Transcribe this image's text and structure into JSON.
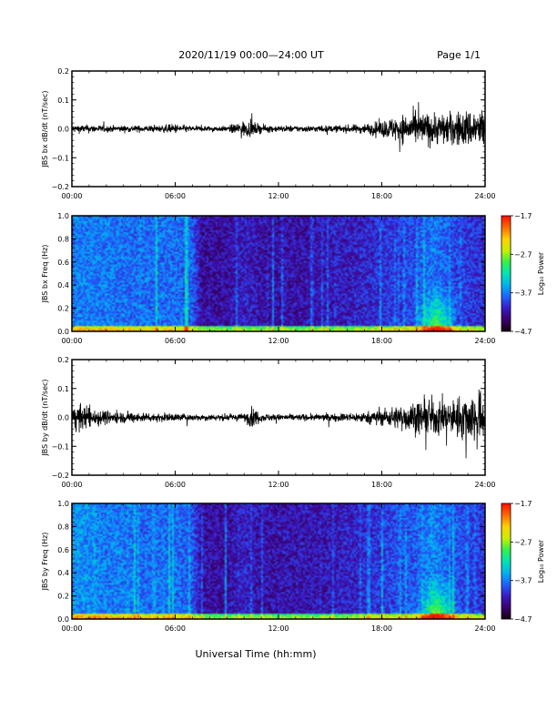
{
  "header": {
    "title": "2020/11/19  00:00—24:00 UT",
    "page": "Page 1/1"
  },
  "colors": {
    "waveform_line": "#000000",
    "background": "#ffffff",
    "colormap": [
      "#140010",
      "#3c0070",
      "#3a1cc8",
      "#1e64ff",
      "#00b4f0",
      "#00e6b4",
      "#32f04b",
      "#c8f000",
      "#ffd200",
      "#ff6e00",
      "#ff1400"
    ]
  },
  "chart_data": [
    {
      "type": "line",
      "title": "",
      "xlabel": "",
      "ylabel": "JBS bx dB/dt (nT/sec)",
      "x_range": [
        "00:00",
        "24:00"
      ],
      "x_ticks": [
        "00:00",
        "06:00",
        "12:00",
        "18:00",
        "24:00"
      ],
      "ylim": [
        -0.2,
        0.2
      ],
      "y_ticks": [
        "0.2",
        "0.1",
        "0.0",
        "−0.1",
        "−0.2"
      ],
      "series": [
        {
          "envelope_hours": [
            0,
            1,
            2,
            3,
            4,
            5,
            6,
            7,
            8,
            9,
            9.5,
            10,
            10.5,
            11,
            12,
            13,
            14,
            15,
            16,
            17,
            18,
            19,
            20,
            21,
            22,
            23,
            24
          ],
          "envelope_amplitude": [
            0.015,
            0.015,
            0.012,
            0.012,
            0.012,
            0.012,
            0.018,
            0.01,
            0.01,
            0.01,
            0.02,
            0.03,
            0.025,
            0.015,
            0.012,
            0.012,
            0.012,
            0.012,
            0.014,
            0.018,
            0.03,
            0.05,
            0.06,
            0.06,
            0.06,
            0.07,
            0.08
          ]
        }
      ]
    },
    {
      "type": "heatmap",
      "title": "",
      "xlabel": "",
      "ylabel": "JBS bx Freq (Hz)",
      "x_range": [
        "00:00",
        "24:00"
      ],
      "x_ticks": [
        "00:00",
        "06:00",
        "12:00",
        "18:00",
        "24:00"
      ],
      "ylim": [
        0.0,
        1.0
      ],
      "y_ticks": [
        "1.0",
        "0.8",
        "0.6",
        "0.4",
        "0.2",
        "0.0"
      ],
      "colorbar": {
        "label": "Log₁₀ Power",
        "range": [
          -4.7,
          -1.7
        ],
        "ticks": [
          "−1.7",
          "−2.7",
          "−3.7",
          "−4.7"
        ]
      },
      "activity_hours": [
        0,
        1,
        2,
        3,
        4,
        5,
        6,
        7,
        7.5,
        8,
        9,
        10,
        11,
        12,
        13,
        14,
        15,
        16,
        17,
        18,
        19,
        20,
        21,
        22,
        23,
        24
      ],
      "activity_level": [
        0.55,
        0.55,
        0.55,
        0.5,
        0.5,
        0.5,
        0.5,
        0.45,
        0.1,
        0.08,
        0.1,
        0.2,
        0.12,
        0.1,
        0.12,
        0.12,
        0.15,
        0.18,
        0.22,
        0.28,
        0.32,
        0.4,
        0.55,
        0.4,
        0.3,
        0.25
      ]
    },
    {
      "type": "line",
      "title": "",
      "xlabel": "",
      "ylabel": "JBS by dB/dt (nT/sec)",
      "x_range": [
        "00:00",
        "24:00"
      ],
      "x_ticks": [
        "00:00",
        "06:00",
        "12:00",
        "18:00",
        "24:00"
      ],
      "ylim": [
        -0.2,
        0.2
      ],
      "y_ticks": [
        "0.2",
        "0.1",
        "0.0",
        "−0.1",
        "−0.2"
      ],
      "series": [
        {
          "envelope_hours": [
            0,
            0.5,
            1,
            2,
            3,
            4,
            5,
            6,
            7,
            8,
            9,
            10,
            10.5,
            11,
            12,
            13,
            14,
            15,
            16,
            17,
            18,
            19,
            20,
            21,
            22,
            23,
            24
          ],
          "envelope_amplitude": [
            0.04,
            0.05,
            0.04,
            0.025,
            0.02,
            0.018,
            0.016,
            0.015,
            0.012,
            0.012,
            0.012,
            0.015,
            0.04,
            0.015,
            0.012,
            0.012,
            0.012,
            0.014,
            0.016,
            0.02,
            0.03,
            0.045,
            0.06,
            0.07,
            0.06,
            0.09,
            0.1
          ]
        }
      ]
    },
    {
      "type": "heatmap",
      "title": "",
      "xlabel": "Universal Time (hh:mm)",
      "ylabel": "JBS by Freq (Hz)",
      "x_range": [
        "00:00",
        "24:00"
      ],
      "x_ticks": [
        "00:00",
        "06:00",
        "12:00",
        "18:00",
        "24:00"
      ],
      "ylim": [
        0.0,
        1.0
      ],
      "y_ticks": [
        "1.0",
        "0.8",
        "0.6",
        "0.4",
        "0.2",
        "0.0"
      ],
      "colorbar": {
        "label": "Log₁₀ Power",
        "range": [
          -4.7,
          -1.7
        ],
        "ticks": [
          "−1.7",
          "−2.7",
          "−3.7",
          "−4.7"
        ]
      },
      "activity_hours": [
        0,
        1,
        2,
        3,
        4,
        5,
        6,
        7,
        7.5,
        8,
        9,
        10,
        11,
        12,
        13,
        14,
        15,
        16,
        17,
        18,
        19,
        20,
        21,
        22,
        23,
        24
      ],
      "activity_level": [
        0.65,
        0.6,
        0.55,
        0.55,
        0.5,
        0.5,
        0.5,
        0.45,
        0.12,
        0.1,
        0.1,
        0.2,
        0.12,
        0.12,
        0.14,
        0.14,
        0.16,
        0.2,
        0.25,
        0.32,
        0.38,
        0.45,
        0.6,
        0.45,
        0.35,
        0.3
      ]
    }
  ]
}
